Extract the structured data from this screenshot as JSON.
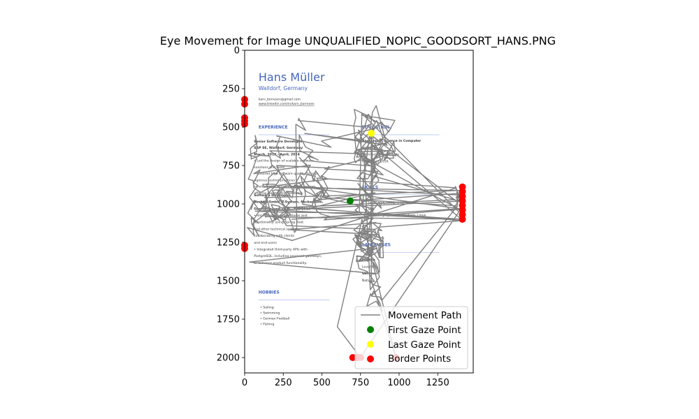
{
  "chart_data": {
    "type": "scatter",
    "title": "Eye Movement for Image UNQUALIFIED_NOPIC_GOODSORT_HANS.PNG",
    "xlabel": "",
    "ylabel": "",
    "xlim": [
      0,
      1480
    ],
    "ylim": [
      2100,
      0
    ],
    "x_ticks": [
      0,
      250,
      500,
      750,
      1000,
      1250
    ],
    "y_ticks": [
      0,
      250,
      500,
      750,
      1000,
      1250,
      1500,
      1750,
      2000
    ],
    "grid": false,
    "legend_position": "lower-right",
    "series": [
      {
        "name": "Movement Path",
        "kind": "line",
        "color": "#808080"
      },
      {
        "name": "First Gaze Point",
        "kind": "point",
        "color": "#008000",
        "points": [
          [
            683,
            980
          ]
        ]
      },
      {
        "name": "Last Gaze Point",
        "kind": "point",
        "color": "#ffff00",
        "points": [
          [
            820,
            540
          ]
        ]
      },
      {
        "name": "Border Points",
        "kind": "point",
        "color": "#ff0000",
        "points": [
          [
            0,
            320
          ],
          [
            0,
            350
          ],
          [
            0,
            440
          ],
          [
            0,
            460
          ],
          [
            0,
            480
          ],
          [
            0,
            1270
          ],
          [
            0,
            1290
          ],
          [
            1410,
            890
          ],
          [
            1410,
            920
          ],
          [
            1410,
            950
          ],
          [
            1410,
            980
          ],
          [
            1410,
            1010
          ],
          [
            1410,
            1040
          ],
          [
            1410,
            1070
          ],
          [
            1410,
            1100
          ],
          [
            700,
            2000
          ],
          [
            730,
            2000
          ],
          [
            750,
            2000
          ],
          [
            980,
            2000
          ]
        ]
      }
    ],
    "background_image": {
      "name": "Hans Müller",
      "location": "Walldorf, Germany",
      "email": "karn_borresen@gmail.com",
      "linkedin": "www.linkedin.com/in/karn_borresen",
      "sections": {
        "experience": "EXPERIENCE",
        "education": "EDUCATION",
        "skills": "SKILLS",
        "languages": "LANGUAGES",
        "hobbies": "HOBBIES"
      },
      "left_lines": [
        "Senior Software Developer",
        "SAP SE, Walldorf, Germany",
        "March, 2018 - April, 2024",
        "• Led the design of scalable software",
        "  solutions and team",
        "• Ensured high software quality through",
        "  rigorous testing practices",
        "• Participated actively in code reviews,",
        "  offering constructive feedback.",
        "Software Developer",
        "Bechtle GmbH IT-System, Neckarsulm,",
        "Germany, June 2016 - Feb 2018",
        "• Implemented new features and",
        "  functionality using Spring Boot",
        "  and other technical systems",
        "  collaborating with clients",
        "  and end-users",
        "• Integrated third-party APIs with",
        "  PostgreSQL, including payment gateways,",
        "  to enhance product functionality."
      ],
      "hobbies": [
        "Sailing",
        "Swimming",
        "German Football",
        "Fishing"
      ],
      "education_lines": [
        "Bachelor of Science in Computer",
        "Science",
        "Technische Hochschule",
        "Graduated 2016"
      ],
      "skills_lines": [
        "JavaScript, HTML, CSS",
        "SQL",
        "Operating Systems: Windows, Linux"
      ],
      "language_lines": [
        "English",
        "Level B1",
        "German",
        "Native"
      ]
    }
  }
}
